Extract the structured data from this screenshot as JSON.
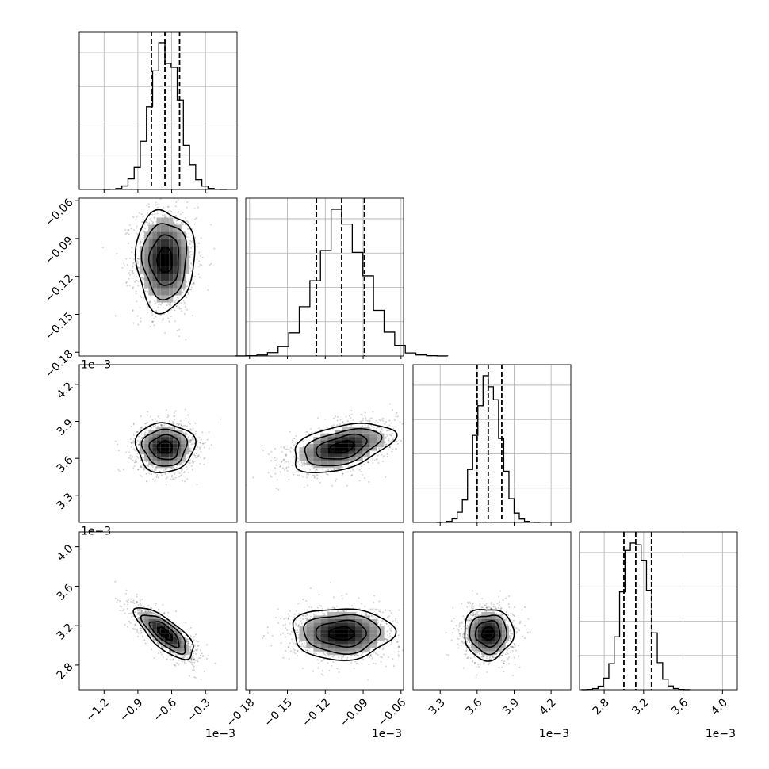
{
  "chart_data": {
    "type": "corner",
    "grid": true,
    "color": "#000000",
    "params": [
      {
        "ticks": [
          -1.2,
          -0.9,
          -0.6,
          -0.3
        ],
        "tick_labels": [
          "−1.2",
          "−0.9",
          "−0.6",
          "−0.3"
        ],
        "offset_label": "1e−3",
        "range": [
          -1.42,
          -0.02
        ],
        "mean": -0.66,
        "sd": 0.13,
        "quantiles": [
          -0.78,
          -0.66,
          -0.53
        ]
      },
      {
        "ticks": [
          -0.18,
          -0.15,
          -0.12,
          -0.09,
          -0.06
        ],
        "tick_labels": [
          "−0.18",
          "−0.15",
          "−0.12",
          "−0.09",
          "−0.06"
        ],
        "offset_label": "1e−3",
        "range": [
          -0.183,
          -0.058
        ],
        "mean": -0.107,
        "sd": 0.02,
        "quantiles": [
          -0.127,
          -0.107,
          -0.089
        ]
      },
      {
        "ticks": [
          3.3,
          3.6,
          3.9,
          4.2
        ],
        "tick_labels": [
          "3.3",
          "3.6",
          "3.9",
          "4.2"
        ],
        "offset_label": "1e−3",
        "range": [
          3.08,
          4.36
        ],
        "mean": 3.69,
        "sd": 0.1,
        "quantiles": [
          3.6,
          3.69,
          3.8
        ]
      },
      {
        "ticks": [
          2.8,
          3.2,
          3.6,
          4.0
        ],
        "tick_labels": [
          "2.8",
          "3.2",
          "3.6",
          "4.0"
        ],
        "offset_label": "1e−3",
        "range": [
          2.55,
          4.15
        ],
        "mean": 3.12,
        "sd": 0.13,
        "quantiles": [
          3.0,
          3.12,
          3.28
        ]
      }
    ],
    "correlations": [
      {
        "pair": [
          1,
          0
        ],
        "rho": 0.0
      },
      {
        "pair": [
          2,
          0
        ],
        "rho": 0.0
      },
      {
        "pair": [
          2,
          1
        ],
        "rho": 0.45
      },
      {
        "pair": [
          3,
          0
        ],
        "rho": -0.75
      },
      {
        "pair": [
          3,
          1
        ],
        "rho": 0.0
      },
      {
        "pair": [
          3,
          2
        ],
        "rho": 0.0
      }
    ],
    "contour_levels_sigma": [
      0.5,
      1.0,
      1.5,
      2.0
    ]
  }
}
